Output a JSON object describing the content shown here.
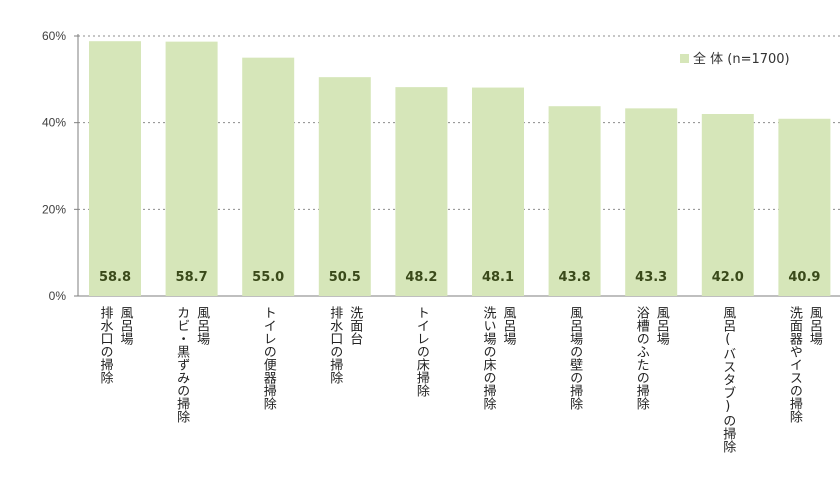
{
  "chart_data": {
    "type": "bar",
    "categories": [
      [
        "風呂場",
        "排水口の掃除"
      ],
      [
        "風呂場",
        "カビ・黒ずみの掃除"
      ],
      [
        "トイレの便器掃除"
      ],
      [
        "洗面台",
        "排水口の掃除"
      ],
      [
        "トイレの床掃除"
      ],
      [
        "風呂場",
        "洗い場の床の掃除"
      ],
      [
        "風呂場の壁の掃除"
      ],
      [
        "風呂場",
        "浴槽のふたの掃除"
      ],
      [
        "風呂(バスタブ)の掃除"
      ],
      [
        "風呂場",
        "洗面器やイスの掃除"
      ]
    ],
    "series": [
      {
        "name": "全 体 (n=1700)",
        "values": [
          58.8,
          58.7,
          55.0,
          50.5,
          48.2,
          48.1,
          43.8,
          43.3,
          42.0,
          40.9
        ],
        "labels": [
          "58.8",
          "58.7",
          "55.0",
          "50.5",
          "48.2",
          "48.1",
          "43.8",
          "43.3",
          "42.0",
          "40.9"
        ]
      }
    ],
    "ylim": [
      0,
      60
    ],
    "yticks": [
      0,
      20,
      40,
      60
    ],
    "ytick_labels": [
      "0%",
      "20%",
      "40%",
      "60%"
    ],
    "grid": true,
    "legend_position": "top-right",
    "colors": {
      "bar": "#d6e6b9",
      "label": "#3a4a1a",
      "axis": "#7f7f7f",
      "grid": "#8c8c8c"
    }
  }
}
